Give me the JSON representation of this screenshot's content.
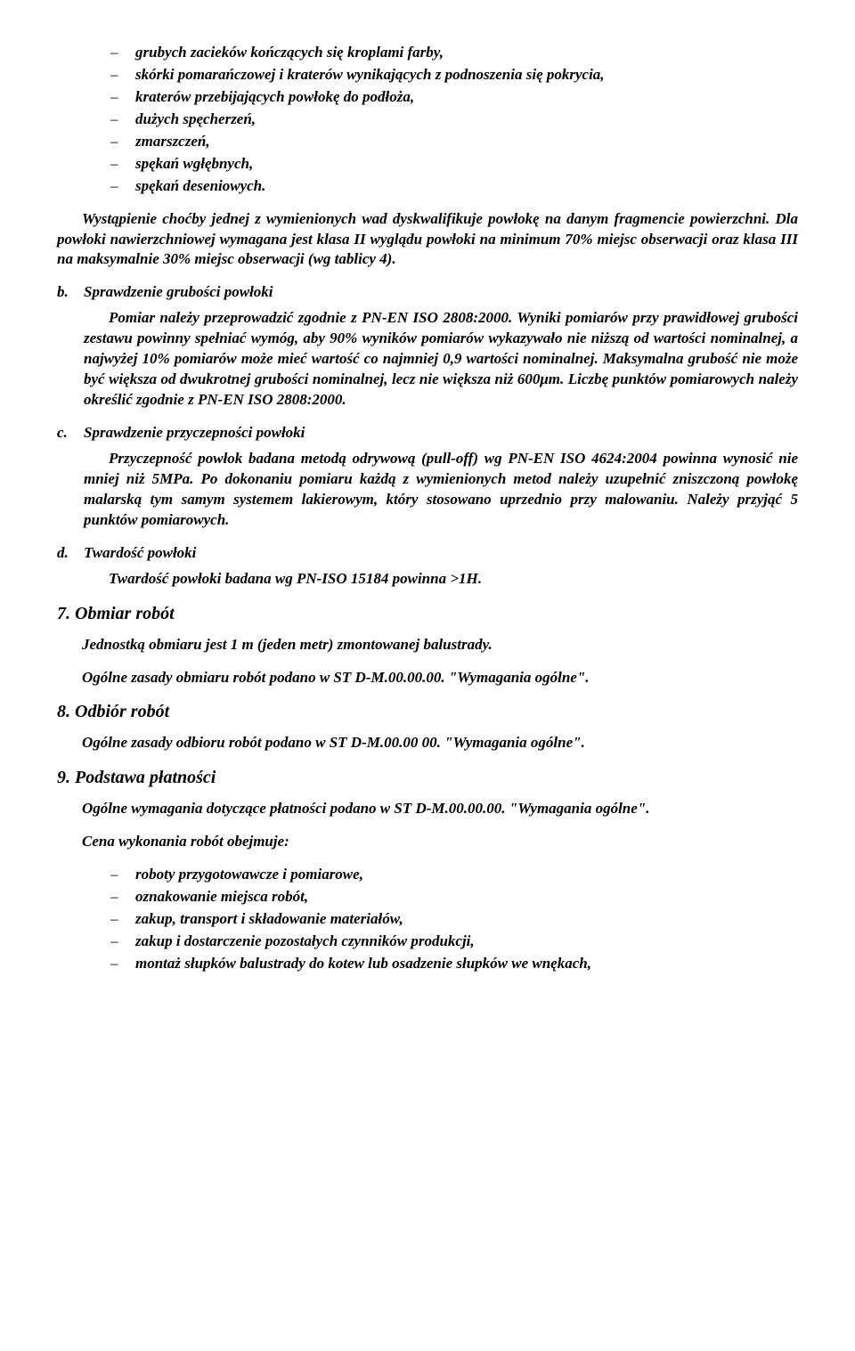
{
  "top_list": [
    "grubych zacieków kończących się kroplami farby,",
    "skórki pomarańczowej i kraterów wynikających z podnoszenia się pokrycia,",
    "kraterów przebijających powłokę do podłoża,",
    "dużych spęcherzeń,",
    "zmarszczeń,",
    "spękań wgłębnych,",
    "spękań deseniowych."
  ],
  "para1": "Wystąpienie choćby jednej z wymienionych wad dyskwalifikuje powłokę na danym fragmencie powierzchni. Dla powłoki nawierzchniowej wymagana jest klasa II wyglądu powłoki na minimum 70% miejsc obserwacji oraz klasa III na maksymalnie 30% miejsc obserwacji (wg tablicy 4).",
  "letters": {
    "b": {
      "label": "b.",
      "title": "Sprawdzenie grubości powłoki",
      "body": "Pomiar należy przeprowadzić zgodnie z PN-EN ISO 2808:2000. Wyniki pomiarów przy prawidłowej grubości zestawu powinny spełniać wymóg, aby 90% wyników pomiarów wykazywało nie niższą od wartości nominalnej, a najwyżej 10% pomiarów może mieć wartość co najmniej 0,9 wartości nominalnej. Maksymalna grubość nie może być większa od dwukrotnej grubości nominalnej, lecz nie większa niż 600μm. Liczbę punktów pomiarowych należy określić zgodnie z  PN-EN ISO 2808:2000."
    },
    "c": {
      "label": "c.",
      "title": "Sprawdzenie przyczepności powłoki",
      "body": "Przyczepność powłok badana metodą odrywową (pull-off) wg PN-EN ISO 4624:2004 powinna wynosić nie mniej niż 5MPa. Po dokonaniu pomiaru każdą z wymienionych metod należy uzupełnić zniszczoną powłokę malarską tym samym systemem lakierowym, który stosowano uprzednio przy malowaniu. Należy przyjąć 5 punktów pomiarowych."
    },
    "d": {
      "label": "d.",
      "title": "Twardość powłoki",
      "body": "Twardość powłoki badana wg PN-ISO 15184 powinna >1H."
    }
  },
  "sections": {
    "s7": {
      "heading": "7. Obmiar robót",
      "p1": "Jednostką obmiaru jest 1 m (jeden metr) zmontowanej balustrady.",
      "p2": "Ogólne zasady obmiaru robót podano w ST D-M.00.00.00. \"Wymagania ogólne\"."
    },
    "s8": {
      "heading": "8. Odbiór robót",
      "p1": "Ogólne zasady odbioru robót podano w ST D-M.00.00 00. \"Wymagania ogólne\"."
    },
    "s9": {
      "heading": "9. Podstawa płatności",
      "p1": "Ogólne wymagania dotyczące płatności podano w ST D-M.00.00.00. \"Wymagania ogólne\".",
      "p2": "Cena wykonania robót obejmuje:"
    }
  },
  "bottom_list": [
    "roboty przygotowawcze i pomiarowe,",
    "oznakowanie miejsca robót,",
    "zakup, transport i składowanie materiałów,",
    "zakup i dostarczenie pozostałych czynników produkcji,",
    "montaż słupków balustrady do kotew lub osadzenie słupków we wnękach,"
  ]
}
